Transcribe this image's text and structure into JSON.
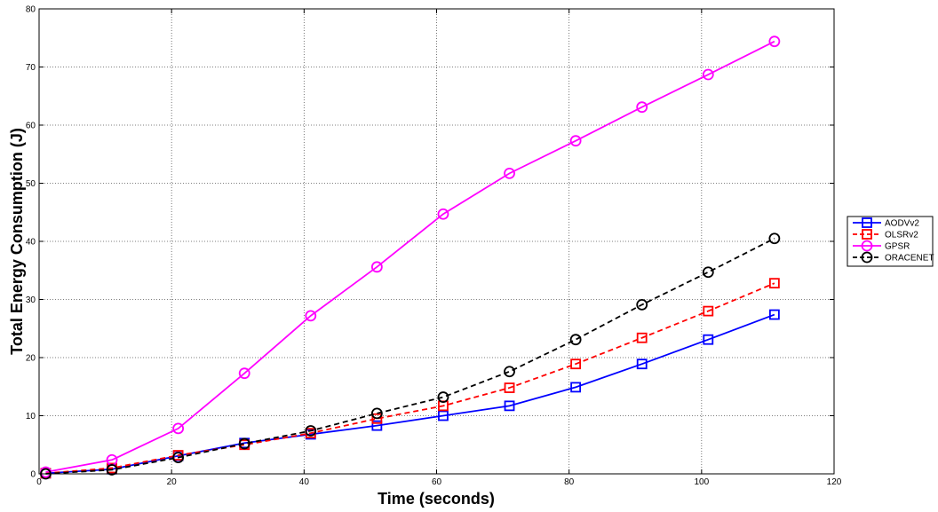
{
  "chart_data": {
    "type": "line",
    "xlabel": "Time (seconds)",
    "ylabel": "Total Energy Consumption (J)",
    "xlim": [
      0,
      120
    ],
    "ylim": [
      0,
      80
    ],
    "xticks": [
      0,
      20,
      40,
      60,
      80,
      100,
      120
    ],
    "yticks": [
      0,
      10,
      20,
      30,
      40,
      50,
      60,
      70,
      80
    ],
    "grid": true,
    "legend": "outside-right",
    "x": [
      1,
      11,
      21,
      31,
      41,
      51,
      61,
      71,
      81,
      91,
      101,
      111
    ],
    "series": [
      {
        "name": "AODVv2",
        "color": "#0000ff",
        "dash": "solid",
        "marker": "square",
        "values": [
          0.1,
          0.8,
          3.1,
          5.3,
          6.8,
          8.3,
          10.0,
          11.7,
          14.9,
          18.9,
          23.1,
          27.4
        ]
      },
      {
        "name": "OLSRv2",
        "color": "#ff0000",
        "dash": "dashed",
        "marker": "square",
        "values": [
          0.1,
          1.0,
          3.2,
          5.0,
          7.0,
          9.5,
          11.7,
          14.8,
          18.9,
          23.4,
          28.0,
          32.8
        ]
      },
      {
        "name": "GPSR",
        "color": "#ff00ff",
        "dash": "solid",
        "marker": "circle",
        "values": [
          0.3,
          2.4,
          7.8,
          17.3,
          27.2,
          35.6,
          44.7,
          51.7,
          57.3,
          63.1,
          68.7,
          74.4
        ]
      },
      {
        "name": "ORACENET",
        "color": "#000000",
        "dash": "dashed",
        "marker": "circle",
        "values": [
          0.0,
          0.7,
          2.8,
          5.2,
          7.4,
          10.4,
          13.2,
          17.6,
          23.1,
          29.1,
          34.7,
          40.5
        ]
      }
    ]
  }
}
